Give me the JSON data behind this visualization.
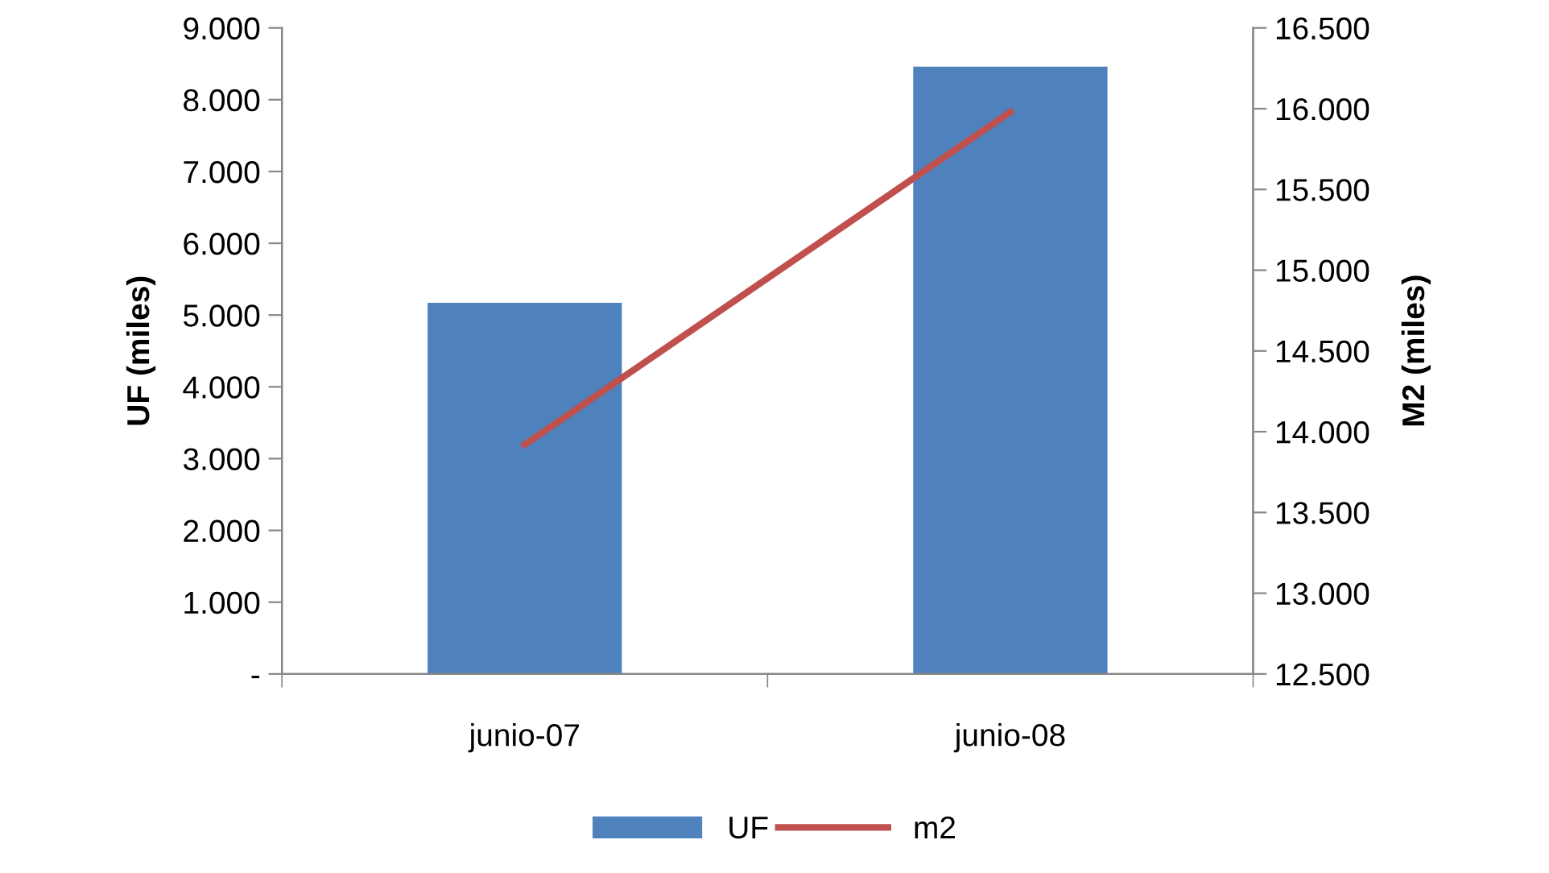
{
  "chart_data": {
    "type": "bar",
    "categories": [
      "junio-07",
      "junio-08"
    ],
    "series": [
      {
        "name": "UF",
        "color": "#4f81bd",
        "values": [
          5170,
          8460
        ]
      },
      {
        "name": "m2",
        "type": "line",
        "axis": "y2",
        "color": "#c0504d",
        "values": [
          13920,
          15980
        ]
      }
    ],
    "ylabel": "UF (miles)",
    "y2label": "M2 (miles)",
    "ylim": [
      0,
      9000
    ],
    "yticks": [
      {
        "value": 0,
        "label": "-"
      },
      {
        "value": 1000,
        "label": "1.000"
      },
      {
        "value": 2000,
        "label": "2.000"
      },
      {
        "value": 3000,
        "label": "3.000"
      },
      {
        "value": 4000,
        "label": "4.000"
      },
      {
        "value": 5000,
        "label": "5.000"
      },
      {
        "value": 6000,
        "label": "6.000"
      },
      {
        "value": 7000,
        "label": "7.000"
      },
      {
        "value": 8000,
        "label": "8.000"
      },
      {
        "value": 9000,
        "label": "9.000"
      }
    ],
    "y2lim": [
      12500,
      16500
    ],
    "y2ticks": [
      {
        "value": 12500,
        "label": "12.500"
      },
      {
        "value": 13000,
        "label": "13.000"
      },
      {
        "value": 13500,
        "label": "13.500"
      },
      {
        "value": 14000,
        "label": "14.000"
      },
      {
        "value": 14500,
        "label": "14.500"
      },
      {
        "value": 15000,
        "label": "15.000"
      },
      {
        "value": 15500,
        "label": "15.500"
      },
      {
        "value": 16000,
        "label": "16.000"
      },
      {
        "value": 16500,
        "label": "16.500"
      }
    ],
    "grid": false,
    "legend": "bottom",
    "marker": "none",
    "line_style": "solid"
  }
}
